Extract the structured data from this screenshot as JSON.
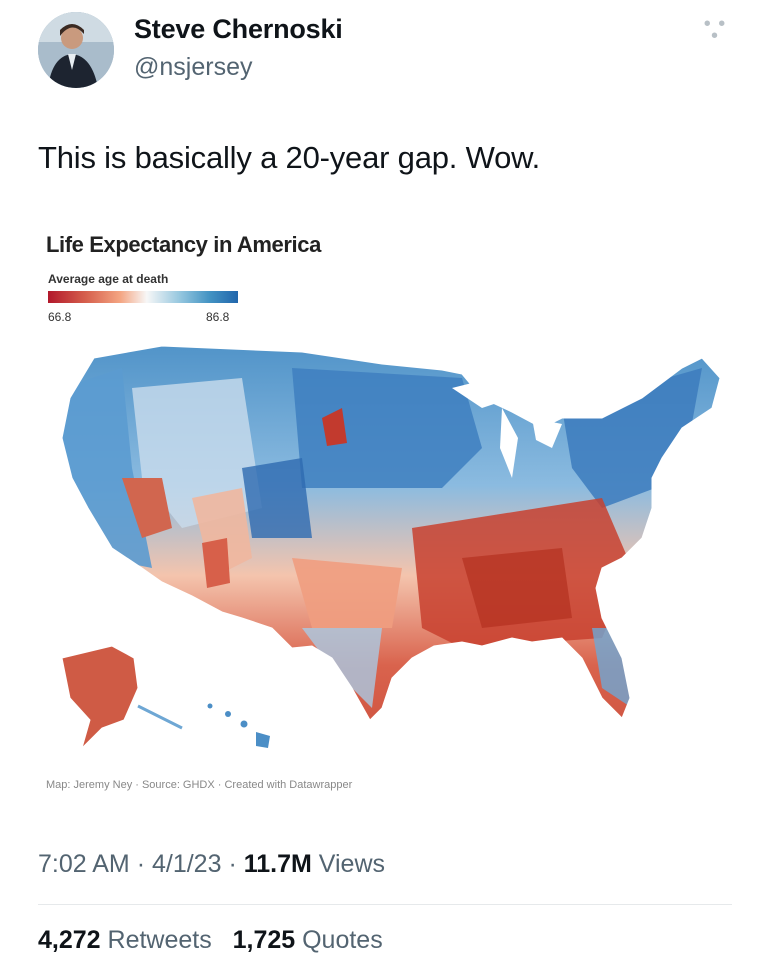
{
  "tweet": {
    "display_name": "Steve Chernoski",
    "handle": "@nsjersey",
    "text": "This is basically a 20-year gap. Wow.",
    "time": "7:02 AM",
    "date": "4/1/23",
    "views_count": "11.7M",
    "views_label": "Views",
    "retweets_count": "4,272",
    "retweets_label": "Retweets",
    "quotes_count": "1,725",
    "quotes_label": "Quotes",
    "more_icon": "more-icon"
  },
  "map": {
    "title": "Life Expectancy in America",
    "legend_label": "Average age at death",
    "legend_min": "66.8",
    "legend_max": "86.8",
    "credit": "Map: Jeremy Ney · Source: GHDX · Created with Datawrapper",
    "colors": {
      "low": "#b2182b",
      "mid": "#f7f7f7",
      "high": "#2166ac"
    }
  }
}
